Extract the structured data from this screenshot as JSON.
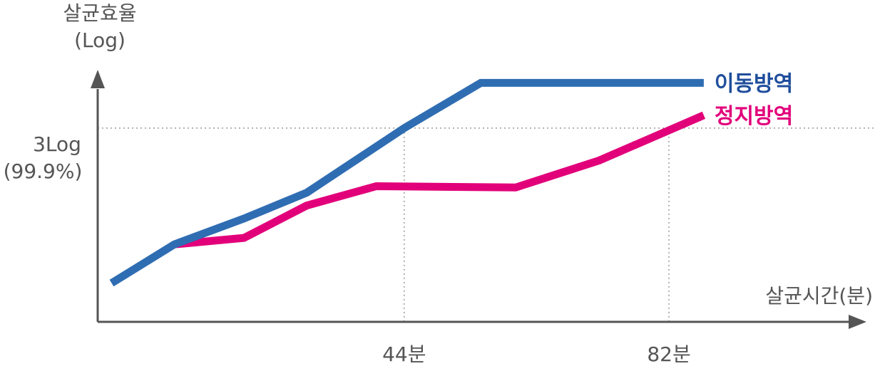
{
  "chart_data": {
    "type": "line",
    "ylabel": "살균효율",
    "ylabel_unit": "(Log)",
    "xlabel": "살균시간(분)",
    "x_ticks": [
      "44분",
      "82분"
    ],
    "y_ticks": [
      {
        "line1": "3Log",
        "line2": "(99.9%)",
        "value": 3
      }
    ],
    "ylim": [
      0,
      4.3
    ],
    "xlim": [
      0,
      108
    ],
    "grid": "dotted reference lines at 44분, 82분 and 3Log",
    "legend_placement": "right, at line ends",
    "series": [
      {
        "name": "이동방역",
        "color": "#2f6db3",
        "points": [
          [
            2,
            0.6
          ],
          [
            11,
            1.2
          ],
          [
            21,
            1.6
          ],
          [
            30,
            2.0
          ],
          [
            44,
            3.0
          ],
          [
            55,
            3.7
          ],
          [
            87,
            3.7
          ]
        ]
      },
      {
        "name": "정지방역",
        "color": "#e2007a",
        "points": [
          [
            11,
            1.2
          ],
          [
            21,
            1.3
          ],
          [
            30,
            1.8
          ],
          [
            40,
            2.1
          ],
          [
            60,
            2.08
          ],
          [
            72,
            2.5
          ],
          [
            87,
            3.2
          ]
        ]
      }
    ]
  }
}
